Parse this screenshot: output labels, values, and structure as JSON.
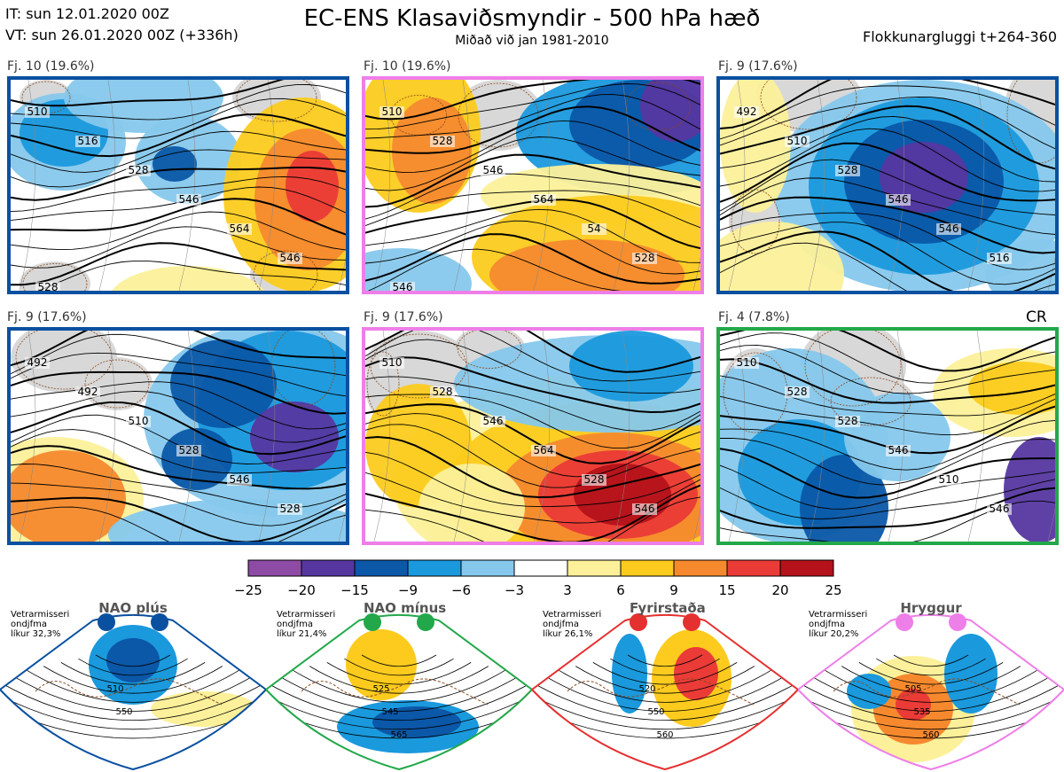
{
  "header": {
    "it_line": "IT: sun 12.01.2020 00Z",
    "vt_line": "VT: sun 26.01.2020 00Z  (+336h)",
    "title": "EC-ENS Klasaviðsmyndir - 500 hPa hæð",
    "subtitle": "Miðað við jan 1981-2010",
    "window": "Flokkunargluggi t+264-360"
  },
  "panels": [
    {
      "label": "Fj. 10 (19.6%)",
      "border_color": "#0a50a0",
      "contours": [
        "510",
        "516",
        "528",
        "546",
        "564",
        "546",
        "528"
      ]
    },
    {
      "label": "Fj. 10 (19.6%)",
      "border_color": "#ee7ee8",
      "contours": [
        "510",
        "528",
        "546",
        "564",
        "54",
        "528",
        "546"
      ]
    },
    {
      "label": "Fj. 9 (17.6%)",
      "border_color": "#0a50a0",
      "contours": [
        "492",
        "510",
        "528",
        "546",
        "546",
        "516"
      ]
    },
    {
      "label": "Fj. 9 (17.6%)",
      "border_color": "#0a50a0",
      "contours": [
        "492",
        "492",
        "510",
        "528",
        "546",
        "528"
      ]
    },
    {
      "label": "Fj. 9 (17.6%)",
      "border_color": "#ee7ee8",
      "contours": [
        "510",
        "528",
        "546",
        "564",
        "528",
        "546"
      ]
    },
    {
      "label": "Fj. 4 (7.8%)",
      "border_color": "#22a84a",
      "contours": [
        "510",
        "528",
        "528",
        "546",
        "510",
        "546"
      ]
    }
  ],
  "cr_label": "CR",
  "colors": {
    "bins": [
      "#8e4ba6",
      "#5637a0",
      "#0b57a8",
      "#1a99dd",
      "#86c8ec",
      "#ffffff",
      "#fcf09a",
      "#fccb1e",
      "#f6892e",
      "#ea3b37",
      "#b5121b"
    ],
    "land": "#d8d8d8",
    "coast": "#8a4a1e"
  },
  "chart_data": {
    "type": "heatmap",
    "title": "EC-ENS Klasaviðsmyndir - 500 hPa hæð",
    "subtitle": "Miðað við jan 1981-2010",
    "colorbar": {
      "ticks": [
        -25,
        -20,
        -15,
        -9,
        -6,
        -3,
        3,
        6,
        9,
        15,
        20,
        25
      ],
      "tick_labels": [
        "−25",
        "−20",
        "−15",
        "−9",
        "−6",
        "−3",
        "3",
        "6",
        "9",
        "15",
        "20",
        "25"
      ]
    },
    "clusters": [
      {
        "name": "Fj. 10",
        "members": 10,
        "percent": 19.6,
        "regime": "NAO plús"
      },
      {
        "name": "Fj. 10",
        "members": 10,
        "percent": 19.6,
        "regime": "Hryggur"
      },
      {
        "name": "Fj. 9",
        "members": 9,
        "percent": 17.6,
        "regime": "NAO plús"
      },
      {
        "name": "Fj. 9",
        "members": 9,
        "percent": 17.6,
        "regime": "NAO plús"
      },
      {
        "name": "Fj. 9",
        "members": 9,
        "percent": 17.6,
        "regime": "Hryggur"
      },
      {
        "name": "Fj. 4",
        "members": 4,
        "percent": 7.8,
        "regime": "NAO mínus"
      }
    ]
  },
  "regimes": [
    {
      "name": "NAO plús",
      "color": "#0a50a0",
      "note": "Vetrarmisseri\nondjfma\nlíkur 32,3%",
      "contours": [
        "510",
        "550"
      ]
    },
    {
      "name": "NAO mínus",
      "color": "#22a84a",
      "note": "Vetrarmisseri\nondjfma\nlíkur 21,4%",
      "contours": [
        "525",
        "545",
        "565"
      ]
    },
    {
      "name": "Fyrirstaða",
      "color": "#e53030",
      "note": "Vetrarmisseri\nondjfma\nlíkur 26,1%",
      "contours": [
        "520",
        "550",
        "560"
      ]
    },
    {
      "name": "Hryggur",
      "color": "#ee7ee8",
      "note": "Vetrarmisseri\nondjfma\nlíkur 20,2%",
      "contours": [
        "505",
        "535",
        "560"
      ]
    }
  ]
}
